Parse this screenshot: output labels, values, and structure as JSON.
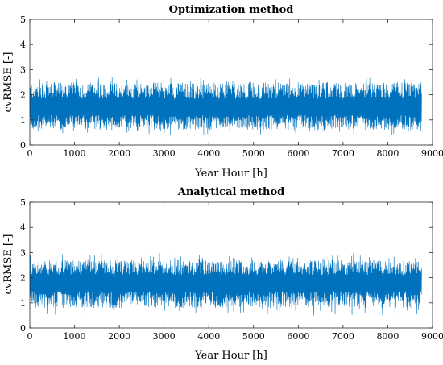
{
  "chart_data": [
    {
      "type": "line",
      "title": "Optimization method",
      "xlabel": "Year Hour [h]",
      "ylabel": "cvRMSE [-]",
      "xlim": [
        0,
        9000
      ],
      "ylim": [
        0,
        5
      ],
      "xticks": [
        "0",
        "1000",
        "2000",
        "3000",
        "4000",
        "5000",
        "6000",
        "7000",
        "8000",
        "9000"
      ],
      "yticks": [
        "0",
        "1",
        "2",
        "3",
        "4",
        "5"
      ],
      "grid": false,
      "series_color": "#0072BD",
      "series": [
        {
          "x_range": [
            0,
            8760
          ],
          "typical_min": 0.6,
          "typical_max": 2.5,
          "peak_min": 0.4,
          "peak_max": 2.7,
          "mean": 1.5
        }
      ]
    },
    {
      "type": "line",
      "title": "Analytical method",
      "xlabel": "Year Hour [h]",
      "ylabel": "cvRMSE [-]",
      "xlim": [
        0,
        9000
      ],
      "ylim": [
        0,
        5
      ],
      "xticks": [
        "0",
        "1000",
        "2000",
        "3000",
        "4000",
        "5000",
        "6000",
        "7000",
        "8000",
        "9000"
      ],
      "yticks": [
        "0",
        "1",
        "2",
        "3",
        "4",
        "5"
      ],
      "grid": false,
      "series_color": "#0072BD",
      "series": [
        {
          "x_range": [
            0,
            8760
          ],
          "typical_min": 0.8,
          "typical_max": 2.7,
          "peak_min": 0.5,
          "peak_max": 3.0,
          "mean": 1.8
        }
      ]
    }
  ]
}
